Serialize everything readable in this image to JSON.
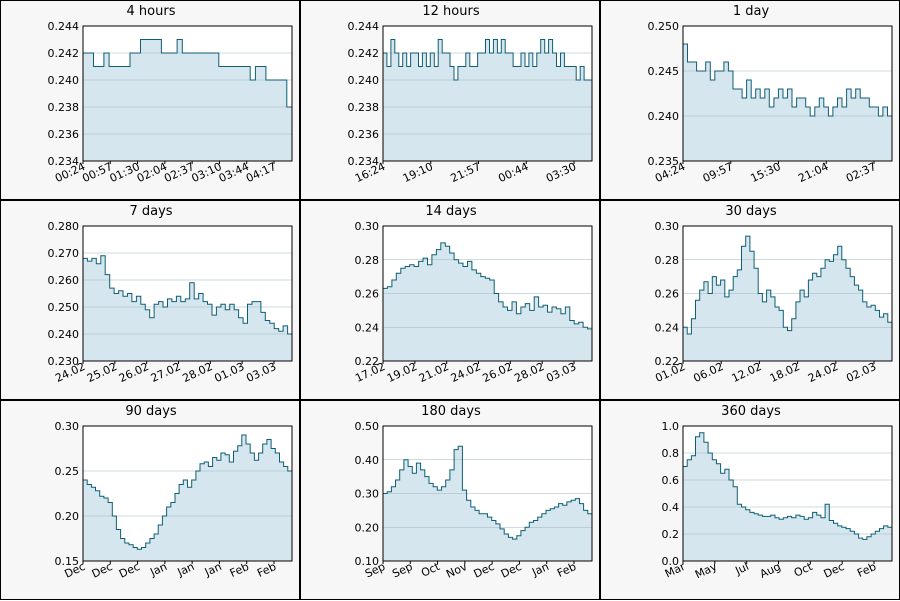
{
  "colors": {
    "line": "#0e5f76",
    "fill": "#d6e6ee",
    "grid": "#9fb4bf",
    "plot_bg": "#ffffff"
  },
  "chart_data": [
    {
      "type": "area",
      "title": "4 hours",
      "ylim": [
        0.234,
        0.244
      ],
      "yticks": [
        "0.234",
        "0.236",
        "0.238",
        "0.240",
        "0.242",
        "0.244"
      ],
      "xticks": [
        "00:24",
        "00:57",
        "01:30",
        "02:04",
        "02:37",
        "03:10",
        "03:44",
        "04:17"
      ],
      "grid": true,
      "values": [
        0.242,
        0.242,
        0.241,
        0.241,
        0.242,
        0.241,
        0.241,
        0.241,
        0.241,
        0.242,
        0.242,
        0.243,
        0.243,
        0.243,
        0.243,
        0.242,
        0.242,
        0.242,
        0.243,
        0.242,
        0.242,
        0.242,
        0.242,
        0.242,
        0.242,
        0.242,
        0.241,
        0.241,
        0.241,
        0.241,
        0.241,
        0.241,
        0.24,
        0.241,
        0.241,
        0.24,
        0.24,
        0.24,
        0.24,
        0.238,
        0.236
      ]
    },
    {
      "type": "area",
      "title": "12 hours",
      "ylim": [
        0.234,
        0.244
      ],
      "yticks": [
        "0.234",
        "0.236",
        "0.238",
        "0.240",
        "0.242",
        "0.244"
      ],
      "xticks": [
        "16:24",
        "19:10",
        "21:57",
        "00:44",
        "03:30"
      ],
      "grid": true,
      "values": [
        0.242,
        0.241,
        0.243,
        0.242,
        0.241,
        0.242,
        0.241,
        0.242,
        0.242,
        0.241,
        0.242,
        0.241,
        0.242,
        0.241,
        0.243,
        0.242,
        0.242,
        0.241,
        0.24,
        0.241,
        0.241,
        0.242,
        0.241,
        0.241,
        0.242,
        0.242,
        0.243,
        0.242,
        0.243,
        0.242,
        0.243,
        0.242,
        0.242,
        0.241,
        0.241,
        0.242,
        0.241,
        0.242,
        0.241,
        0.242,
        0.243,
        0.242,
        0.243,
        0.242,
        0.241,
        0.242,
        0.241,
        0.241,
        0.241,
        0.24,
        0.241,
        0.24,
        0.24,
        0.236
      ]
    },
    {
      "type": "area",
      "title": "1 day",
      "ylim": [
        0.235,
        0.25
      ],
      "yticks": [
        "0.235",
        "0.240",
        "0.245",
        "0.250"
      ],
      "xticks": [
        "04:24",
        "09:57",
        "15:30",
        "21:04",
        "02:37"
      ],
      "grid": true,
      "values": [
        0.248,
        0.246,
        0.246,
        0.245,
        0.245,
        0.246,
        0.244,
        0.245,
        0.245,
        0.246,
        0.245,
        0.243,
        0.243,
        0.242,
        0.244,
        0.242,
        0.243,
        0.242,
        0.243,
        0.241,
        0.242,
        0.243,
        0.242,
        0.243,
        0.241,
        0.242,
        0.242,
        0.241,
        0.24,
        0.241,
        0.242,
        0.241,
        0.24,
        0.241,
        0.242,
        0.241,
        0.243,
        0.242,
        0.243,
        0.242,
        0.242,
        0.241,
        0.241,
        0.24,
        0.241,
        0.24,
        0.236
      ]
    },
    {
      "type": "area",
      "title": "7 days",
      "ylim": [
        0.23,
        0.28
      ],
      "yticks": [
        "0.230",
        "0.240",
        "0.250",
        "0.260",
        "0.270",
        "0.280"
      ],
      "xticks": [
        "24.02",
        "25.02",
        "26.02",
        "27.02",
        "28.02",
        "01.03",
        "03.03"
      ],
      "grid": true,
      "values": [
        0.268,
        0.267,
        0.268,
        0.266,
        0.269,
        0.262,
        0.257,
        0.255,
        0.256,
        0.254,
        0.255,
        0.252,
        0.254,
        0.251,
        0.249,
        0.246,
        0.251,
        0.252,
        0.25,
        0.253,
        0.252,
        0.254,
        0.252,
        0.253,
        0.259,
        0.253,
        0.255,
        0.252,
        0.251,
        0.247,
        0.25,
        0.251,
        0.249,
        0.251,
        0.249,
        0.246,
        0.244,
        0.251,
        0.252,
        0.252,
        0.248,
        0.245,
        0.244,
        0.242,
        0.241,
        0.243,
        0.24,
        0.236
      ]
    },
    {
      "type": "area",
      "title": "14 days",
      "ylim": [
        0.22,
        0.3
      ],
      "yticks": [
        "0.22",
        "0.24",
        "0.26",
        "0.28",
        "0.30"
      ],
      "xticks": [
        "17.02",
        "19.02",
        "21.02",
        "24.02",
        "26.02",
        "28.02",
        "03.03"
      ],
      "grid": true,
      "values": [
        0.263,
        0.264,
        0.268,
        0.272,
        0.275,
        0.276,
        0.277,
        0.276,
        0.279,
        0.281,
        0.277,
        0.283,
        0.286,
        0.29,
        0.288,
        0.284,
        0.28,
        0.278,
        0.276,
        0.279,
        0.274,
        0.272,
        0.27,
        0.269,
        0.268,
        0.26,
        0.255,
        0.252,
        0.25,
        0.255,
        0.248,
        0.252,
        0.254,
        0.25,
        0.258,
        0.252,
        0.253,
        0.249,
        0.252,
        0.251,
        0.248,
        0.252,
        0.244,
        0.242,
        0.243,
        0.24,
        0.239,
        0.236
      ]
    },
    {
      "type": "area",
      "title": "30 days",
      "ylim": [
        0.22,
        0.3
      ],
      "yticks": [
        "0.22",
        "0.24",
        "0.26",
        "0.28",
        "0.30"
      ],
      "xticks": [
        "01.02",
        "06.02",
        "12.02",
        "18.02",
        "24.02",
        "02.03"
      ],
      "grid": true,
      "values": [
        0.24,
        0.236,
        0.245,
        0.256,
        0.262,
        0.267,
        0.26,
        0.27,
        0.265,
        0.268,
        0.258,
        0.262,
        0.27,
        0.274,
        0.288,
        0.294,
        0.285,
        0.275,
        0.26,
        0.255,
        0.262,
        0.258,
        0.252,
        0.25,
        0.24,
        0.238,
        0.245,
        0.255,
        0.262,
        0.258,
        0.268,
        0.272,
        0.27,
        0.275,
        0.28,
        0.279,
        0.283,
        0.288,
        0.28,
        0.275,
        0.27,
        0.265,
        0.262,
        0.255,
        0.252,
        0.253,
        0.25,
        0.246,
        0.248,
        0.243,
        0.238
      ]
    },
    {
      "type": "area",
      "title": "90 days",
      "ylim": [
        0.15,
        0.3
      ],
      "yticks": [
        "0.15",
        "0.20",
        "0.25",
        "0.30"
      ],
      "xticks": [
        "Dec",
        "Dec",
        "Dec",
        "Jan",
        "Jan",
        "Jan",
        "Feb",
        "Feb"
      ],
      "grid": true,
      "values": [
        0.24,
        0.235,
        0.232,
        0.228,
        0.222,
        0.22,
        0.215,
        0.2,
        0.185,
        0.175,
        0.17,
        0.168,
        0.165,
        0.163,
        0.165,
        0.17,
        0.175,
        0.18,
        0.19,
        0.2,
        0.21,
        0.215,
        0.225,
        0.235,
        0.24,
        0.232,
        0.24,
        0.25,
        0.258,
        0.26,
        0.255,
        0.265,
        0.262,
        0.27,
        0.268,
        0.26,
        0.272,
        0.278,
        0.29,
        0.28,
        0.27,
        0.262,
        0.27,
        0.28,
        0.285,
        0.275,
        0.27,
        0.26,
        0.255,
        0.25,
        0.24
      ]
    },
    {
      "type": "area",
      "title": "180 days",
      "ylim": [
        0.1,
        0.5
      ],
      "yticks": [
        "0.10",
        "0.20",
        "0.30",
        "0.40",
        "0.50"
      ],
      "xticks": [
        "Sep",
        "Sep",
        "Oct",
        "Nov",
        "Dec",
        "Dec",
        "Jan",
        "Feb"
      ],
      "grid": true,
      "values": [
        0.3,
        0.305,
        0.32,
        0.34,
        0.37,
        0.4,
        0.38,
        0.36,
        0.39,
        0.37,
        0.35,
        0.33,
        0.32,
        0.31,
        0.32,
        0.34,
        0.37,
        0.43,
        0.44,
        0.31,
        0.28,
        0.26,
        0.25,
        0.24,
        0.24,
        0.23,
        0.22,
        0.21,
        0.195,
        0.18,
        0.17,
        0.165,
        0.175,
        0.19,
        0.2,
        0.215,
        0.22,
        0.23,
        0.24,
        0.25,
        0.255,
        0.26,
        0.27,
        0.265,
        0.275,
        0.28,
        0.285,
        0.27,
        0.25,
        0.24,
        0.235
      ]
    },
    {
      "type": "area",
      "title": "360 days",
      "ylim": [
        0.0,
        1.0
      ],
      "yticks": [
        "0.0",
        "0.2",
        "0.4",
        "0.6",
        "0.8",
        "1.0"
      ],
      "xticks": [
        "Mar",
        "May",
        "Jul",
        "Aug",
        "Oct",
        "Dec",
        "Feb"
      ],
      "grid": true,
      "values": [
        0.7,
        0.75,
        0.78,
        0.92,
        0.95,
        0.88,
        0.8,
        0.75,
        0.72,
        0.65,
        0.68,
        0.6,
        0.55,
        0.42,
        0.4,
        0.38,
        0.36,
        0.35,
        0.34,
        0.33,
        0.33,
        0.34,
        0.32,
        0.31,
        0.32,
        0.33,
        0.32,
        0.34,
        0.33,
        0.31,
        0.32,
        0.36,
        0.34,
        0.32,
        0.42,
        0.3,
        0.28,
        0.26,
        0.25,
        0.24,
        0.22,
        0.2,
        0.17,
        0.16,
        0.18,
        0.2,
        0.22,
        0.24,
        0.26,
        0.25,
        0.23
      ]
    }
  ]
}
